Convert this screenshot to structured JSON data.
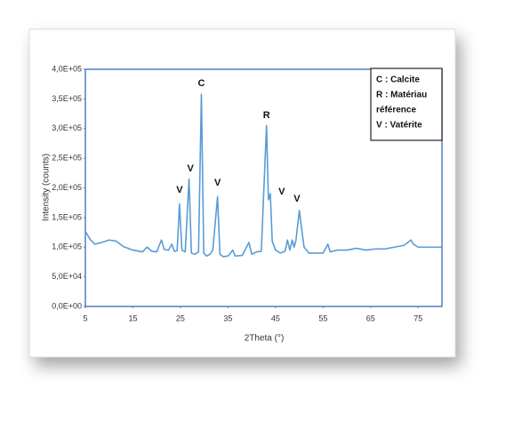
{
  "chart_data": {
    "type": "line",
    "x_label": "2Theta (°)",
    "y_label": "Intensity (counts)",
    "x": [
      5,
      6,
      7,
      8.5,
      10,
      11.5,
      13,
      15,
      17,
      18,
      19,
      20,
      21,
      21.6,
      22.5,
      23.2,
      23.7,
      24.3,
      24.8,
      25.3,
      26,
      26.8,
      27.3,
      28,
      28.8,
      29.4,
      29.9,
      30.5,
      31.2,
      31.8,
      32.8,
      33.3,
      34,
      35,
      36,
      36.5,
      38,
      39.4,
      40,
      41,
      42,
      43.1,
      43.5,
      43.9,
      44.3,
      45,
      46,
      47,
      47.5,
      48,
      48.5,
      48.9,
      49.3,
      50,
      50.5,
      51,
      52,
      55,
      56,
      56.5,
      58,
      60,
      62,
      64,
      66,
      68,
      70,
      72,
      73.5,
      74,
      75,
      77,
      80
    ],
    "series": [
      {
        "name": "Intensity",
        "color": "#5b9bd5",
        "values": [
          127000,
          113000,
          105000,
          108000,
          112000,
          110000,
          101000,
          95000,
          92000,
          100000,
          93000,
          92000,
          112000,
          96000,
          95000,
          105000,
          93000,
          94000,
          173000,
          95000,
          92000,
          215000,
          90000,
          88000,
          92000,
          358000,
          90000,
          85000,
          88000,
          95000,
          185000,
          88000,
          84000,
          85000,
          95000,
          85000,
          86000,
          108000,
          88000,
          92000,
          93000,
          305000,
          180000,
          190000,
          110000,
          95000,
          90000,
          93000,
          112000,
          95000,
          112000,
          100000,
          112000,
          162000,
          130000,
          100000,
          90000,
          90000,
          105000,
          92000,
          95000,
          95000,
          98000,
          95000,
          97000,
          97000,
          100000,
          103000,
          112000,
          105000,
          100000,
          100000,
          100000
        ]
      }
    ],
    "xlim": [
      5,
      80
    ],
    "xticks": [
      5,
      15,
      25,
      35,
      45,
      55,
      65,
      75
    ],
    "ylim": [
      0,
      400000
    ],
    "yticks": [
      {
        "value": 0,
        "label": "0,0E+00"
      },
      {
        "value": 50000,
        "label": "5,0E+04"
      },
      {
        "value": 100000,
        "label": "1,0E+05"
      },
      {
        "value": 150000,
        "label": "1,5E+05"
      },
      {
        "value": 200000,
        "label": "2,0E+05"
      },
      {
        "value": 250000,
        "label": "2,5E+05"
      },
      {
        "value": 300000,
        "label": "3,0E+05"
      },
      {
        "value": 350000,
        "label": "3,5E+05"
      },
      {
        "value": 400000,
        "label": "4,0E+05"
      }
    ],
    "annotations": [
      {
        "text": "C",
        "x": 29.4,
        "y": 376000
      },
      {
        "text": "R",
        "x": 43.1,
        "y": 322000
      },
      {
        "text": "V",
        "x": 24.8,
        "y": 196000
      },
      {
        "text": "V",
        "x": 27.1,
        "y": 232000
      },
      {
        "text": "V",
        "x": 32.8,
        "y": 208000
      },
      {
        "text": "V",
        "x": 46.3,
        "y": 193000
      },
      {
        "text": "V",
        "x": 49.5,
        "y": 181000
      }
    ],
    "legend_box": [
      "C : Calcite",
      "R : Matériau",
      "référence",
      "V : Vatérite"
    ]
  }
}
